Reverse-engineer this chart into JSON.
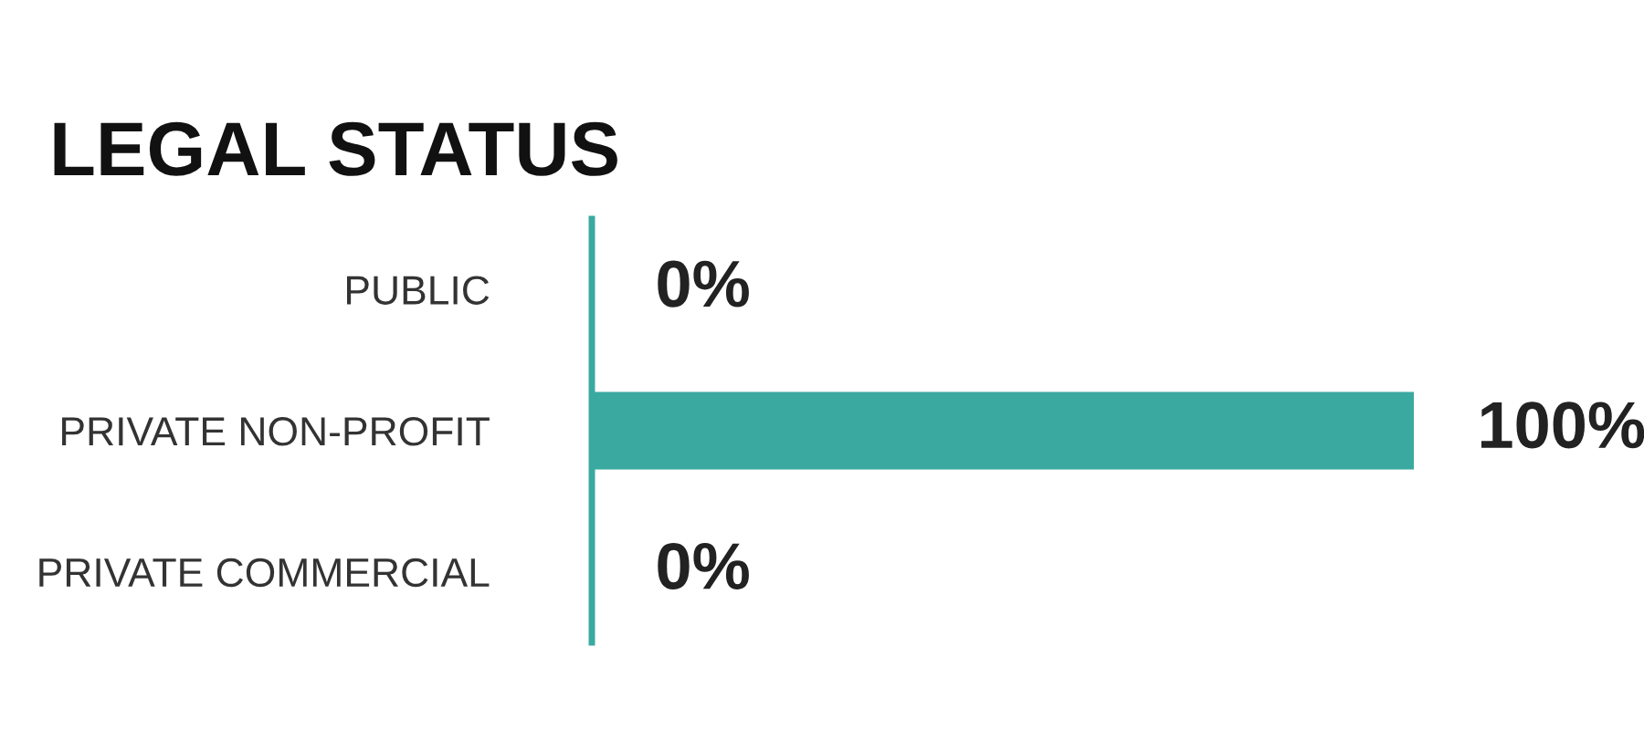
{
  "chart_data": {
    "type": "bar",
    "orientation": "horizontal",
    "title": "LEGAL STATUS",
    "categories": [
      "PUBLIC",
      "PRIVATE NON-PROFIT",
      "PRIVATE COMMERCIAL"
    ],
    "values": [
      0,
      100,
      0
    ],
    "color": "#3aa9a0",
    "xlim": [
      0,
      100
    ],
    "tick_labels": "y",
    "data_labels": true,
    "value_labels": [
      "0%",
      "100%",
      "0%"
    ],
    "grid": false,
    "legend": false
  }
}
